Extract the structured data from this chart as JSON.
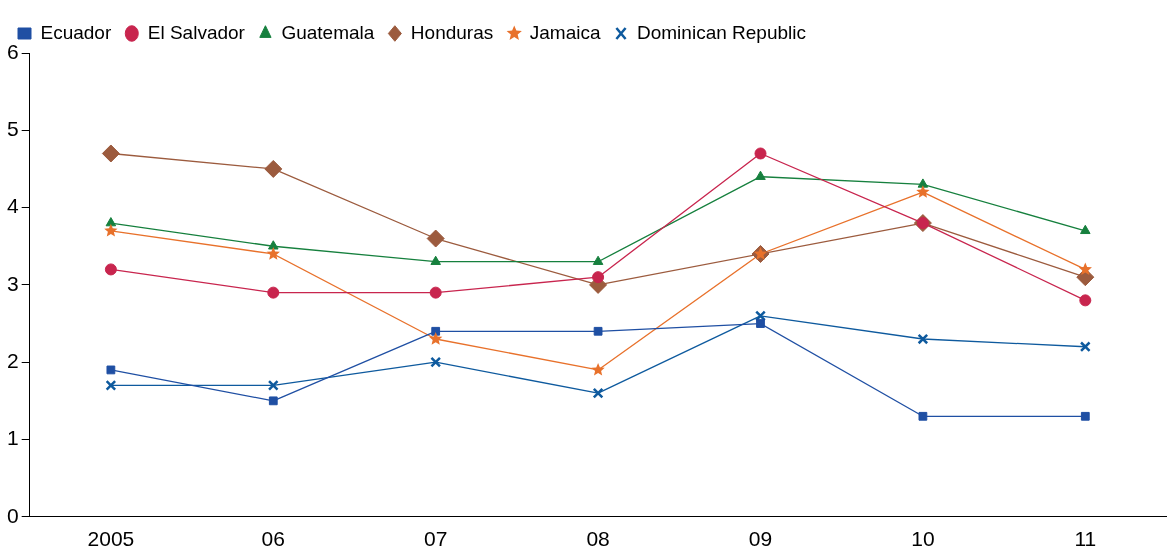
{
  "chart_data": {
    "type": "line",
    "categories": [
      "2005",
      "06",
      "07",
      "08",
      "09",
      "10",
      "11"
    ],
    "ylim": [
      0,
      6
    ],
    "yticks": [
      0,
      1,
      2,
      3,
      4,
      5,
      6
    ],
    "grid": false,
    "legend": "top left",
    "line_style": "solid",
    "series": [
      {
        "name": "Ecuador",
        "color": "#1f4fa3",
        "marker": "square",
        "values": [
          1.9,
          1.5,
          2.4,
          2.4,
          2.5,
          1.3,
          1.3
        ]
      },
      {
        "name": "El Salvador",
        "color": "#c8254e",
        "marker": "circle",
        "values": [
          3.2,
          2.9,
          2.9,
          3.1,
          4.7,
          3.8,
          2.8
        ]
      },
      {
        "name": "Guatemala",
        "color": "#16803e",
        "marker": "triangle",
        "values": [
          3.8,
          3.5,
          3.3,
          3.3,
          4.4,
          4.3,
          3.7
        ]
      },
      {
        "name": "Honduras",
        "color": "#9c5b3e",
        "marker": "diamond",
        "values": [
          4.7,
          4.5,
          3.6,
          3.0,
          3.4,
          3.8,
          3.1
        ]
      },
      {
        "name": "Jamaica",
        "color": "#e8712b",
        "marker": "star",
        "values": [
          3.7,
          3.4,
          2.3,
          1.9,
          3.4,
          4.2,
          3.2
        ]
      },
      {
        "name": "Dominican Republic",
        "color": "#0e5a9e",
        "marker": "cross",
        "values": [
          1.7,
          1.7,
          2.0,
          1.6,
          2.6,
          2.3,
          2.2
        ]
      }
    ]
  }
}
